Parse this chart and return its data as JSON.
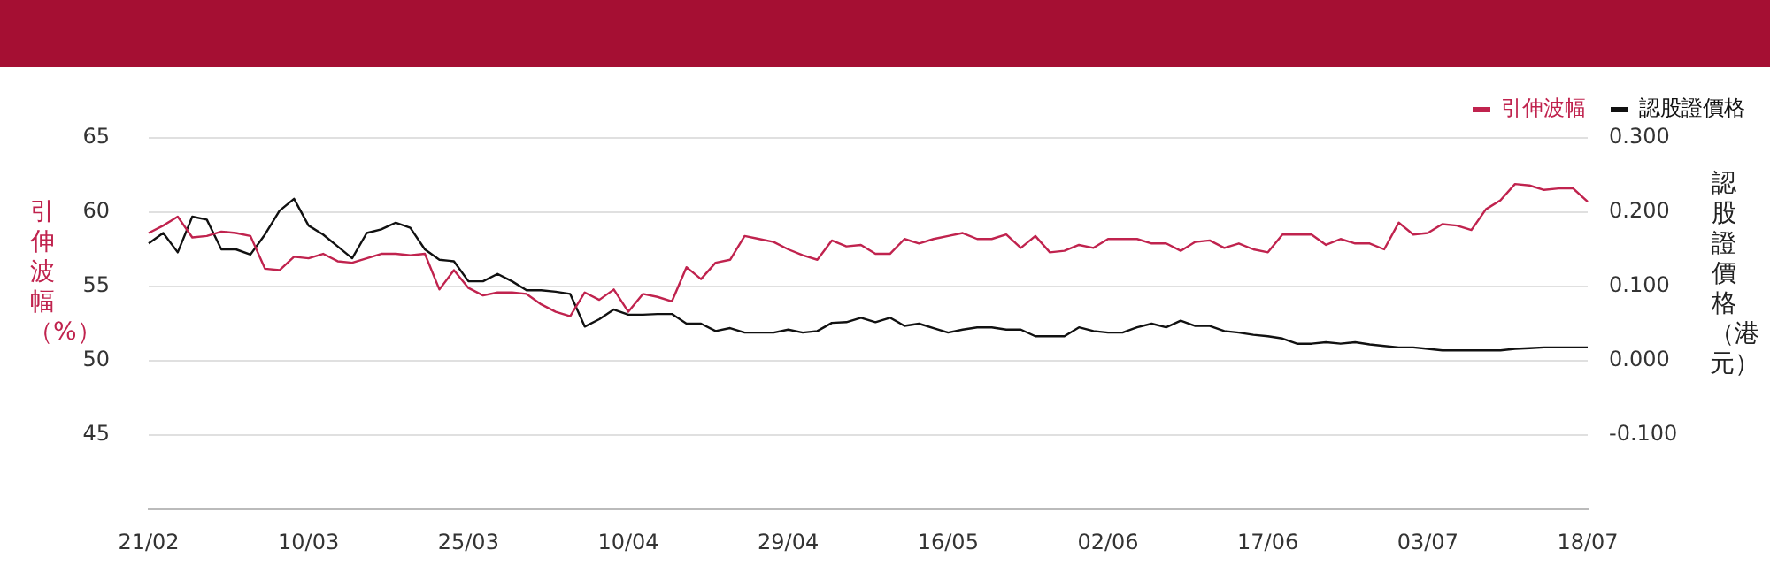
{
  "chart_data": {
    "type": "line",
    "categories": [
      "21/02",
      null,
      null,
      null,
      null,
      null,
      null,
      null,
      null,
      null,
      null,
      "10/03",
      null,
      null,
      null,
      null,
      null,
      null,
      null,
      null,
      null,
      null,
      "25/03",
      null,
      null,
      null,
      null,
      null,
      null,
      null,
      null,
      null,
      null,
      "10/04",
      null,
      null,
      null,
      null,
      null,
      null,
      null,
      null,
      null,
      null,
      "29/04",
      null,
      null,
      null,
      null,
      null,
      null,
      null,
      null,
      null,
      null,
      "16/05",
      null,
      null,
      null,
      null,
      null,
      null,
      null,
      null,
      null,
      null,
      "02/06",
      null,
      null,
      null,
      null,
      null,
      null,
      null,
      null,
      null,
      null,
      "17/06",
      null,
      null,
      null,
      null,
      null,
      null,
      null,
      null,
      null,
      null,
      "03/07",
      null,
      null,
      null,
      null,
      null,
      null,
      null,
      null,
      null,
      null,
      "18/07"
    ],
    "series": [
      {
        "name": "引伸波幅",
        "color": "#c0234e",
        "values": [
          58.6,
          59.1,
          59.7,
          58.3,
          58.4,
          58.7,
          58.6,
          58.4,
          56.2,
          56.1,
          57.0,
          56.9,
          57.2,
          56.7,
          56.6,
          56.9,
          57.2,
          57.2,
          57.1,
          57.2,
          54.8,
          56.1,
          54.9,
          54.4,
          54.6,
          54.6,
          54.5,
          53.8,
          53.3,
          53.0,
          54.6,
          54.1,
          54.8,
          53.3,
          54.5,
          54.3,
          54.0,
          56.3,
          55.5,
          56.6,
          56.8,
          58.4,
          58.2,
          58.0,
          57.5,
          57.1,
          56.8,
          58.1,
          57.7,
          57.8,
          57.2,
          57.2,
          58.2,
          57.9,
          58.2,
          58.4,
          58.6,
          58.2,
          58.2,
          58.5,
          57.6,
          58.4,
          57.3,
          57.4,
          57.8,
          57.6,
          58.2,
          58.2,
          58.2,
          57.9,
          57.9,
          57.4,
          58.0,
          58.1,
          57.6,
          57.9,
          57.5,
          57.3,
          58.5,
          58.5,
          58.5,
          57.8,
          58.2,
          57.9,
          57.9,
          57.5,
          59.3,
          58.5,
          58.6,
          59.2,
          59.1,
          58.8,
          60.2,
          60.8,
          61.9,
          61.8,
          61.5,
          61.6,
          61.6,
          60.7
        ]
      },
      {
        "name": "認股證價格",
        "color": "#111111",
        "axis": "y2",
        "values": [
          0.158,
          0.172,
          0.146,
          0.194,
          0.19,
          0.15,
          0.15,
          0.143,
          0.17,
          0.202,
          0.218,
          0.182,
          0.17,
          0.154,
          0.138,
          0.172,
          0.177,
          0.186,
          0.179,
          0.15,
          0.136,
          0.134,
          0.107,
          0.107,
          0.117,
          0.107,
          0.095,
          0.095,
          0.093,
          0.09,
          0.046,
          0.056,
          0.069,
          0.062,
          0.062,
          0.063,
          0.063,
          0.05,
          0.05,
          0.04,
          0.044,
          0.038,
          0.038,
          0.038,
          0.042,
          0.038,
          0.04,
          0.051,
          0.052,
          0.058,
          0.052,
          0.058,
          0.047,
          0.05,
          0.044,
          0.038,
          0.042,
          0.045,
          0.045,
          0.042,
          0.042,
          0.033,
          0.033,
          0.033,
          0.045,
          0.04,
          0.038,
          0.038,
          0.045,
          0.05,
          0.045,
          0.054,
          0.047,
          0.047,
          0.04,
          0.038,
          0.035,
          0.033,
          0.03,
          0.023,
          0.023,
          0.025,
          0.023,
          0.025,
          0.022,
          0.02,
          0.018,
          0.018,
          0.016,
          0.014,
          0.014,
          0.014,
          0.014,
          0.014,
          0.016,
          0.017,
          0.018,
          0.018,
          0.018,
          0.018
        ]
      }
    ],
    "ylabel": "引伸波幅（%）",
    "y2label": "認股證價格（港元）",
    "ylim": [
      40,
      65
    ],
    "yticks": [
      45,
      50,
      55,
      60,
      65
    ],
    "y2lim": [
      -0.2,
      0.3
    ],
    "y2ticks": [
      {
        "value": -0.1,
        "label": "-0.100"
      },
      {
        "value": 0,
        "label": "0.000"
      },
      {
        "value": 0.1,
        "label": "0.100"
      },
      {
        "value": 0.2,
        "label": "0.200"
      },
      {
        "value": 0.3,
        "label": "0.300"
      }
    ],
    "grid": "y",
    "legend": "top right"
  }
}
